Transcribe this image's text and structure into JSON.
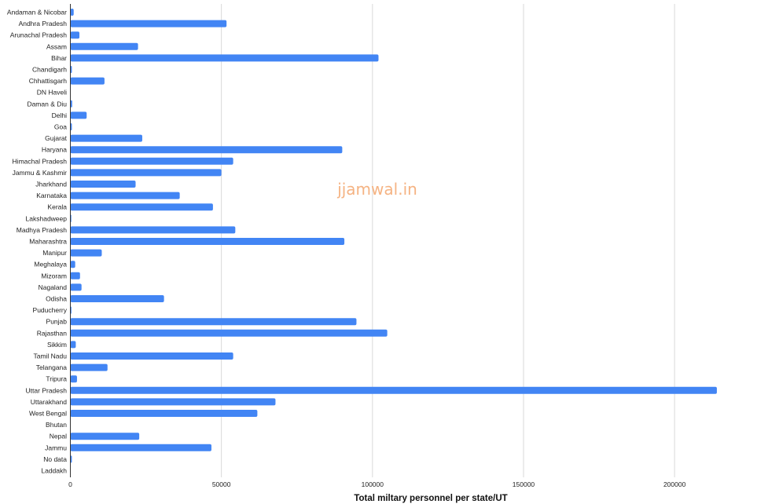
{
  "chart_data": {
    "type": "bar",
    "orientation": "horizontal",
    "categories": [
      "Andaman & Nicobar",
      "Andhra Pradesh",
      "Arunachal Pradesh",
      "Assam",
      "Bihar",
      "Chandigarh",
      "Chhattisgarh",
      "DN Haveli",
      "Daman & Diu",
      "Delhi",
      "Goa",
      "Gujarat",
      "Haryana",
      "Himachal Pradesh",
      "Jammu & Kashmir",
      "Jharkhand",
      "Karnataka",
      "Kerala",
      "Lakshadweep",
      "Madhya Pradesh",
      "Maharashtra",
      "Manipur",
      "Meghalaya",
      "Mizoram",
      "Nagaland",
      "Odisha",
      "Puducherry",
      "Punjab",
      "Rajasthan",
      "Sikkim",
      "Tamil Nadu",
      "Telangana",
      "Tripura",
      "Uttar Pradesh",
      "Uttarakhand",
      "West Bengal",
      "Bhutan",
      "Nepal",
      "Jammu",
      "No data",
      "Laddakh"
    ],
    "values": [
      1100,
      51700,
      3000,
      22400,
      102000,
      500,
      11300,
      0,
      600,
      5400,
      500,
      23800,
      90000,
      53900,
      50000,
      21600,
      36200,
      47200,
      150,
      54600,
      90700,
      10400,
      1600,
      3200,
      3700,
      31000,
      350,
      94700,
      104900,
      1800,
      53900,
      12300,
      2200,
      214000,
      67900,
      61900,
      0,
      22800,
      46700,
      500,
      0
    ],
    "title": "",
    "xlabel": "Total miltary personnel per state/UT",
    "ylabel": "",
    "xlim": [
      0,
      220000
    ],
    "x_ticks": [
      "0",
      "50000",
      "100000",
      "150000",
      "200000"
    ],
    "x_tick_values": [
      0,
      50000,
      100000,
      150000,
      200000
    ],
    "grid": "vertical",
    "legend": "none",
    "bar_color": "#4285f4",
    "grid_color": "#d9d9d9",
    "axis_color": "#333333"
  },
  "watermark": {
    "text": "jjamwal.in",
    "color": "#f5b383"
  }
}
